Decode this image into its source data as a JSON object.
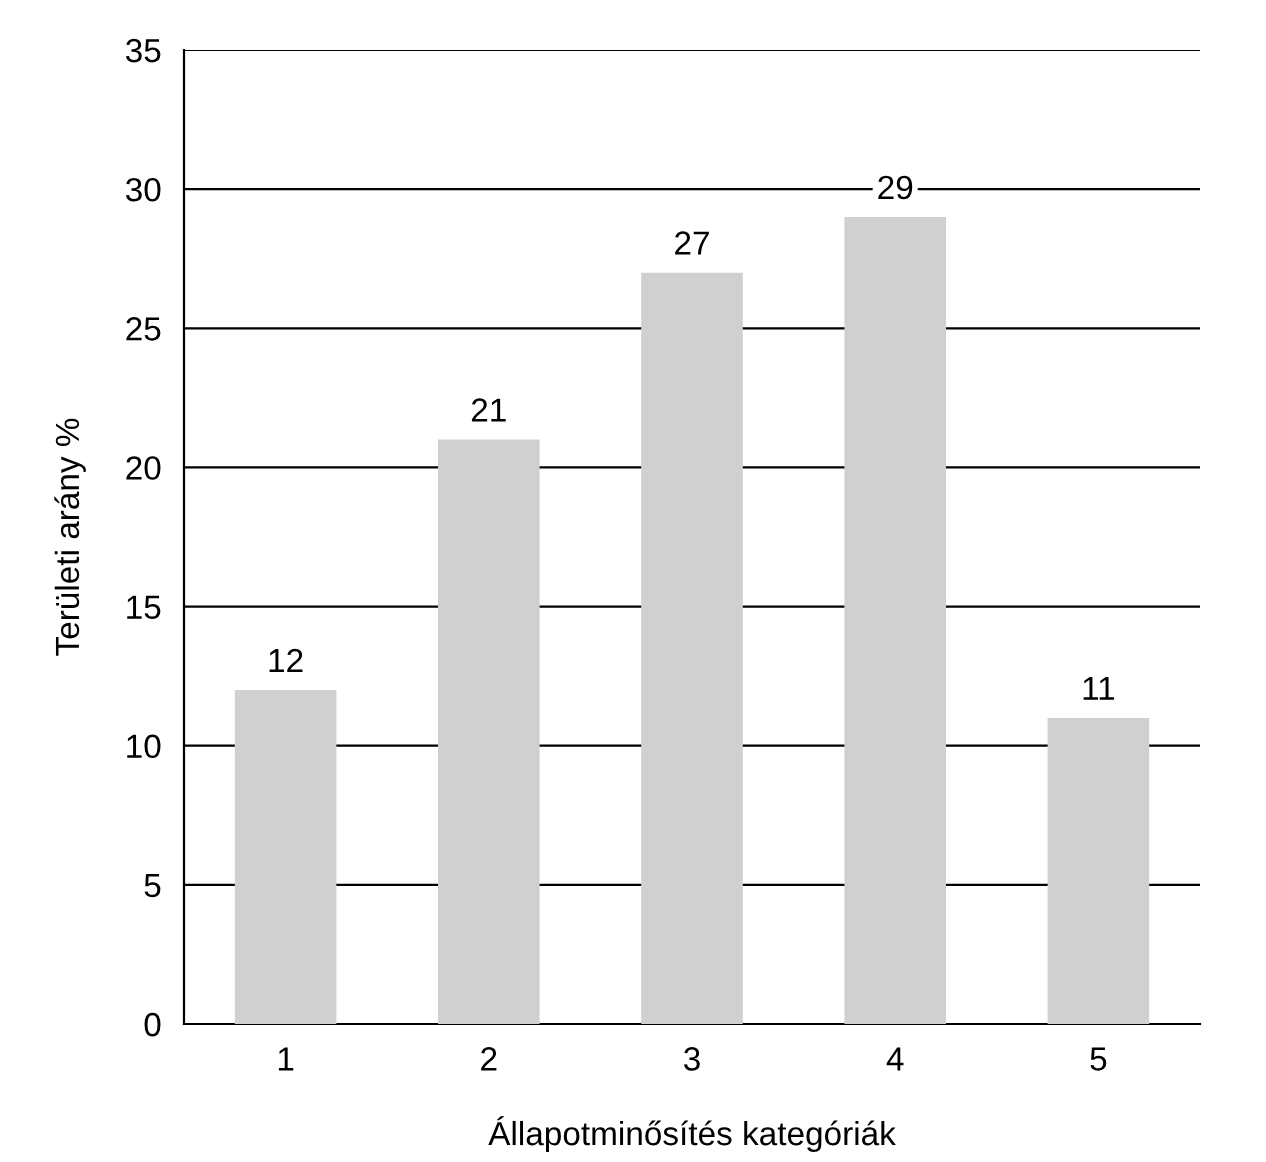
{
  "chart_data": {
    "type": "bar",
    "xlabel": "Állapotminősítés kategóriák",
    "ylabel": "Területi arány %",
    "categories": [
      "1",
      "2",
      "3",
      "4",
      "5"
    ],
    "values": [
      12,
      21,
      27,
      29,
      11
    ],
    "color": "#d0d0d0",
    "ylim": [
      0,
      35
    ],
    "yticks": [
      0,
      5,
      10,
      15,
      20,
      25,
      30,
      35
    ],
    "grid": "y",
    "data_labels": true
  }
}
